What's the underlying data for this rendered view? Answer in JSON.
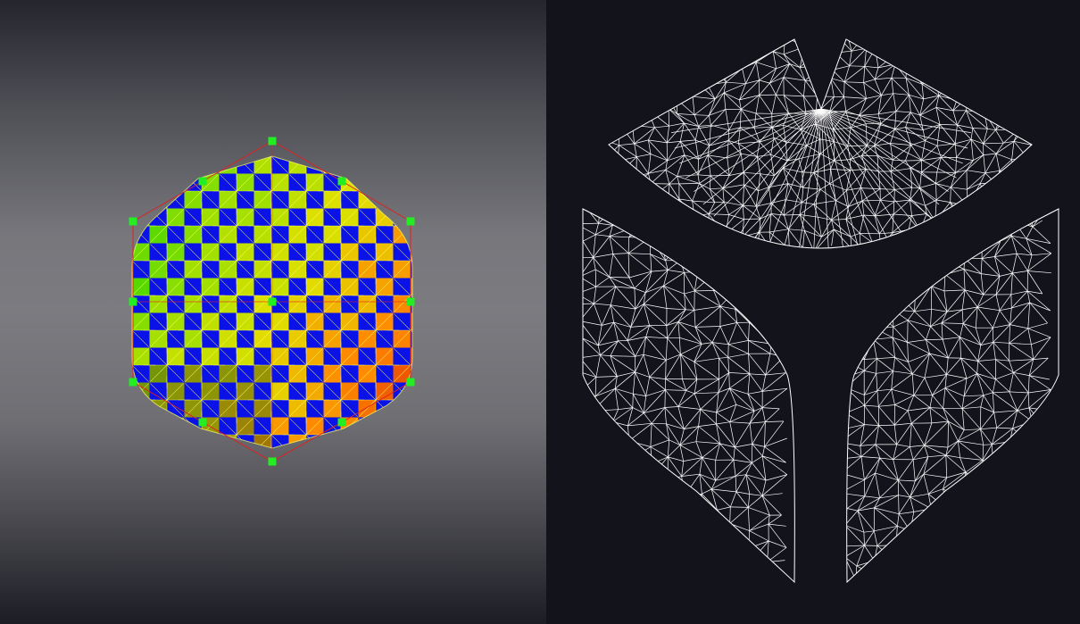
{
  "viewport": {
    "mesh": "hexagonal-rounded-mesh",
    "colors": {
      "checker_dark": "#0a12e8",
      "checker_gradient": [
        "#24d400",
        "#9be000",
        "#e0e000",
        "#ff8a00",
        "#e03000"
      ],
      "wireframe": "#ffff66",
      "cage_edge": "#e02020",
      "control_point": "#22ee22"
    }
  },
  "uv_editor": {
    "islands": [
      "uv-island-top",
      "uv-island-left",
      "uv-island-right"
    ],
    "colors": {
      "background": "#13131c",
      "wireframe": "#ffffff"
    }
  }
}
